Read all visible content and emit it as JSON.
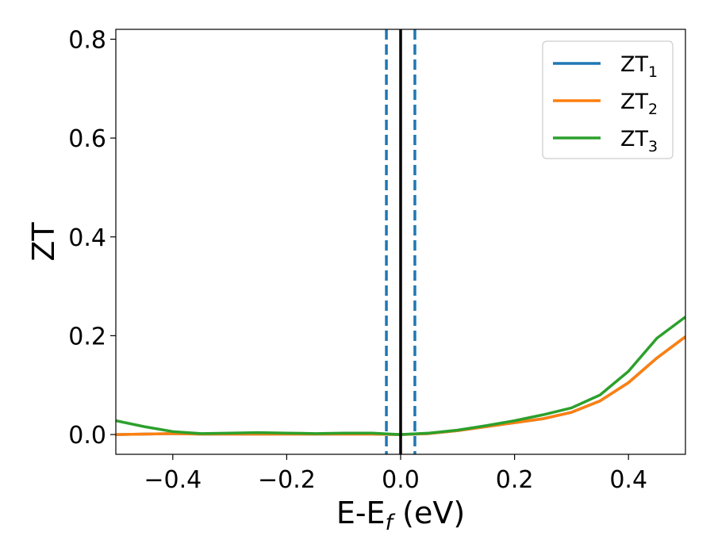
{
  "chart_data": {
    "type": "line",
    "xlabel": "E-E",
    "xlabel_sub": "f",
    "xlabel_unit": " (eV)",
    "ylabel": "ZT",
    "xlim": [
      -0.5,
      0.5
    ],
    "ylim": [
      -0.04,
      0.82
    ],
    "xticks": [
      -0.4,
      -0.2,
      0.0,
      0.2,
      0.4
    ],
    "xtick_labels": [
      "−0.4",
      "−0.2",
      "0.0",
      "0.2",
      "0.4"
    ],
    "yticks": [
      0.0,
      0.2,
      0.4,
      0.6,
      0.8
    ],
    "ytick_labels": [
      "0.0",
      "0.2",
      "0.4",
      "0.6",
      "0.8"
    ],
    "grid": false,
    "legend_position": "top-right",
    "vlines": [
      {
        "x": 0.0,
        "color": "#000000",
        "style": "solid"
      },
      {
        "x": -0.025,
        "color": "#1f77b4",
        "style": "dashed"
      },
      {
        "x": 0.025,
        "color": "#1f77b4",
        "style": "dashed"
      }
    ],
    "series": [
      {
        "name": "ZT",
        "name_sub": "1",
        "color": "#1f77b4",
        "x": [
          -0.5,
          -0.45,
          -0.4,
          -0.35,
          -0.3,
          -0.25,
          -0.2,
          -0.15,
          -0.1,
          -0.05,
          0.0,
          0.05,
          0.1,
          0.15,
          0.2,
          0.25,
          0.3,
          0.35,
          0.4,
          0.45,
          0.5
        ],
        "y": [
          0.0,
          0.001,
          0.002,
          0.001,
          0.001,
          0.001,
          0.001,
          0.001,
          0.001,
          0.001,
          0.0,
          0.002,
          0.008,
          0.016,
          0.024,
          0.032,
          0.045,
          0.068,
          0.105,
          0.155,
          0.198
        ]
      },
      {
        "name": "ZT",
        "name_sub": "2",
        "color": "#ff7f0e",
        "x": [
          -0.5,
          -0.45,
          -0.4,
          -0.35,
          -0.3,
          -0.25,
          -0.2,
          -0.15,
          -0.1,
          -0.05,
          0.0,
          0.05,
          0.1,
          0.15,
          0.2,
          0.25,
          0.3,
          0.35,
          0.4,
          0.45,
          0.5
        ],
        "y": [
          0.0,
          0.001,
          0.002,
          0.001,
          0.001,
          0.001,
          0.001,
          0.001,
          0.001,
          0.001,
          0.0,
          0.002,
          0.008,
          0.016,
          0.024,
          0.032,
          0.045,
          0.068,
          0.105,
          0.155,
          0.198
        ]
      },
      {
        "name": "ZT",
        "name_sub": "3",
        "color": "#2ca02c",
        "x": [
          -0.5,
          -0.45,
          -0.4,
          -0.35,
          -0.3,
          -0.25,
          -0.2,
          -0.15,
          -0.1,
          -0.05,
          0.0,
          0.05,
          0.1,
          0.15,
          0.2,
          0.25,
          0.3,
          0.35,
          0.4,
          0.45,
          0.5
        ],
        "y": [
          0.028,
          0.016,
          0.006,
          0.002,
          0.003,
          0.004,
          0.003,
          0.002,
          0.003,
          0.003,
          0.0,
          0.003,
          0.009,
          0.018,
          0.028,
          0.04,
          0.054,
          0.08,
          0.128,
          0.195,
          0.238
        ]
      }
    ]
  }
}
